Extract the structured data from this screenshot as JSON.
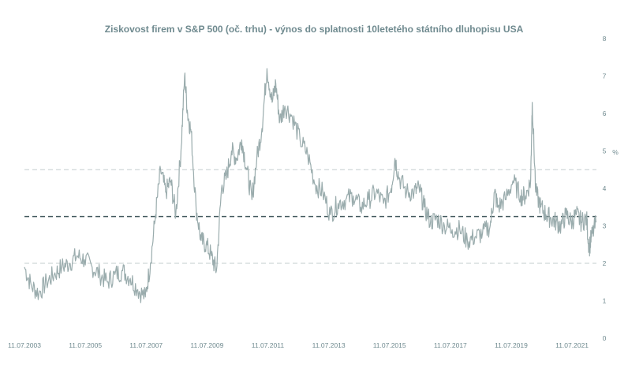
{
  "chart_data": {
    "type": "line",
    "title": "Ziskovost firem v S&P 500 (oč. trhu) - výnos do splatnosti 10letetého státního dluhopisu USA",
    "ylabel": "%",
    "xlabel": "",
    "ylim": [
      0,
      8
    ],
    "yticks": [
      "0",
      "1",
      "2",
      "3",
      "4",
      "5",
      "6",
      "7",
      "8"
    ],
    "xticks": [
      "11.07.2003",
      "11.07.2005",
      "11.07.2007",
      "11.07.2009",
      "11.07.2011",
      "11.07.2013",
      "11.07.2015",
      "11.07.2017",
      "11.07.2019",
      "11.07.2021"
    ],
    "x_range": [
      "2003-07-11",
      "2022-04-30"
    ],
    "reference_lines": [
      {
        "value": 4.5,
        "style": "dashed",
        "color": "#cfd6d7"
      },
      {
        "value": 3.25,
        "style": "dashed",
        "color": "#41585c"
      },
      {
        "value": 2.0,
        "style": "dashed",
        "color": "#cfd6d7"
      }
    ],
    "series_color": "#9aacad",
    "grid": false,
    "series": [
      {
        "x": [
          "2003-07-11",
          "2003-10-01",
          "2004-01-01",
          "2004-04-01",
          "2004-07-01",
          "2004-10-01",
          "2005-01-01",
          "2005-04-01",
          "2005-07-01",
          "2005-10-01",
          "2006-01-01",
          "2006-04-01",
          "2006-07-01",
          "2006-10-01",
          "2007-01-01",
          "2007-04-01",
          "2007-07-01",
          "2007-09-01",
          "2007-11-01",
          "2008-01-01",
          "2008-03-01",
          "2008-05-01",
          "2008-07-01",
          "2008-09-01",
          "2008-10-15",
          "2008-11-20",
          "2009-01-01",
          "2009-03-01",
          "2009-05-01",
          "2009-07-01",
          "2009-09-01",
          "2009-11-01",
          "2010-01-01",
          "2010-03-01",
          "2010-05-01",
          "2010-07-01",
          "2010-09-01",
          "2010-11-01",
          "2011-01-01",
          "2011-03-01",
          "2011-05-01",
          "2011-07-01",
          "2011-09-01",
          "2011-10-15",
          "2011-12-01",
          "2012-02-01",
          "2012-05-01",
          "2012-08-01",
          "2012-11-01",
          "2013-02-01",
          "2013-05-01",
          "2013-08-01",
          "2013-11-01",
          "2014-02-01",
          "2014-05-01",
          "2014-08-01",
          "2014-11-01",
          "2015-02-01",
          "2015-05-01",
          "2015-08-01",
          "2015-09-15",
          "2015-11-01",
          "2016-02-01",
          "2016-05-01",
          "2016-07-01",
          "2016-09-01",
          "2016-11-15",
          "2017-02-01",
          "2017-05-01",
          "2017-08-01",
          "2017-11-01",
          "2018-02-01",
          "2018-05-01",
          "2018-08-01",
          "2018-11-01",
          "2018-12-24",
          "2019-02-01",
          "2019-05-01",
          "2019-08-01",
          "2019-11-01",
          "2020-01-01",
          "2020-03-01",
          "2020-03-20",
          "2020-05-01",
          "2020-07-01",
          "2020-09-01",
          "2020-11-01",
          "2021-01-01",
          "2021-03-01",
          "2021-05-01",
          "2021-07-01",
          "2021-09-01",
          "2021-11-01",
          "2022-01-01",
          "2022-02-01",
          "2022-03-01",
          "2022-04-30"
        ],
        "values": [
          1.9,
          1.4,
          1.2,
          1.5,
          1.7,
          1.9,
          2.0,
          2.2,
          2.1,
          1.9,
          1.7,
          1.5,
          1.7,
          1.8,
          1.6,
          1.3,
          1.1,
          2.0,
          3.3,
          4.5,
          3.9,
          4.2,
          3.3,
          5.0,
          7.0,
          6.0,
          5.5,
          3.5,
          2.6,
          2.5,
          2.2,
          1.8,
          4.0,
          4.3,
          5.0,
          4.8,
          5.3,
          4.5,
          3.7,
          4.8,
          5.6,
          7.2,
          6.3,
          6.8,
          5.8,
          6.2,
          5.9,
          5.3,
          4.9,
          4.1,
          3.9,
          3.3,
          3.6,
          3.7,
          3.8,
          3.5,
          3.7,
          3.9,
          3.6,
          4.0,
          4.8,
          4.3,
          3.9,
          3.9,
          4.0,
          3.5,
          3.1,
          3.2,
          3.0,
          2.9,
          2.9,
          2.6,
          2.7,
          2.8,
          3.0,
          3.9,
          3.5,
          3.7,
          4.2,
          3.8,
          3.8,
          4.2,
          6.3,
          3.9,
          3.5,
          3.3,
          3.2,
          3.1,
          3.0,
          3.3,
          3.1,
          3.3,
          3.1,
          3.2,
          2.4,
          2.7,
          3.1
        ]
      }
    ]
  }
}
